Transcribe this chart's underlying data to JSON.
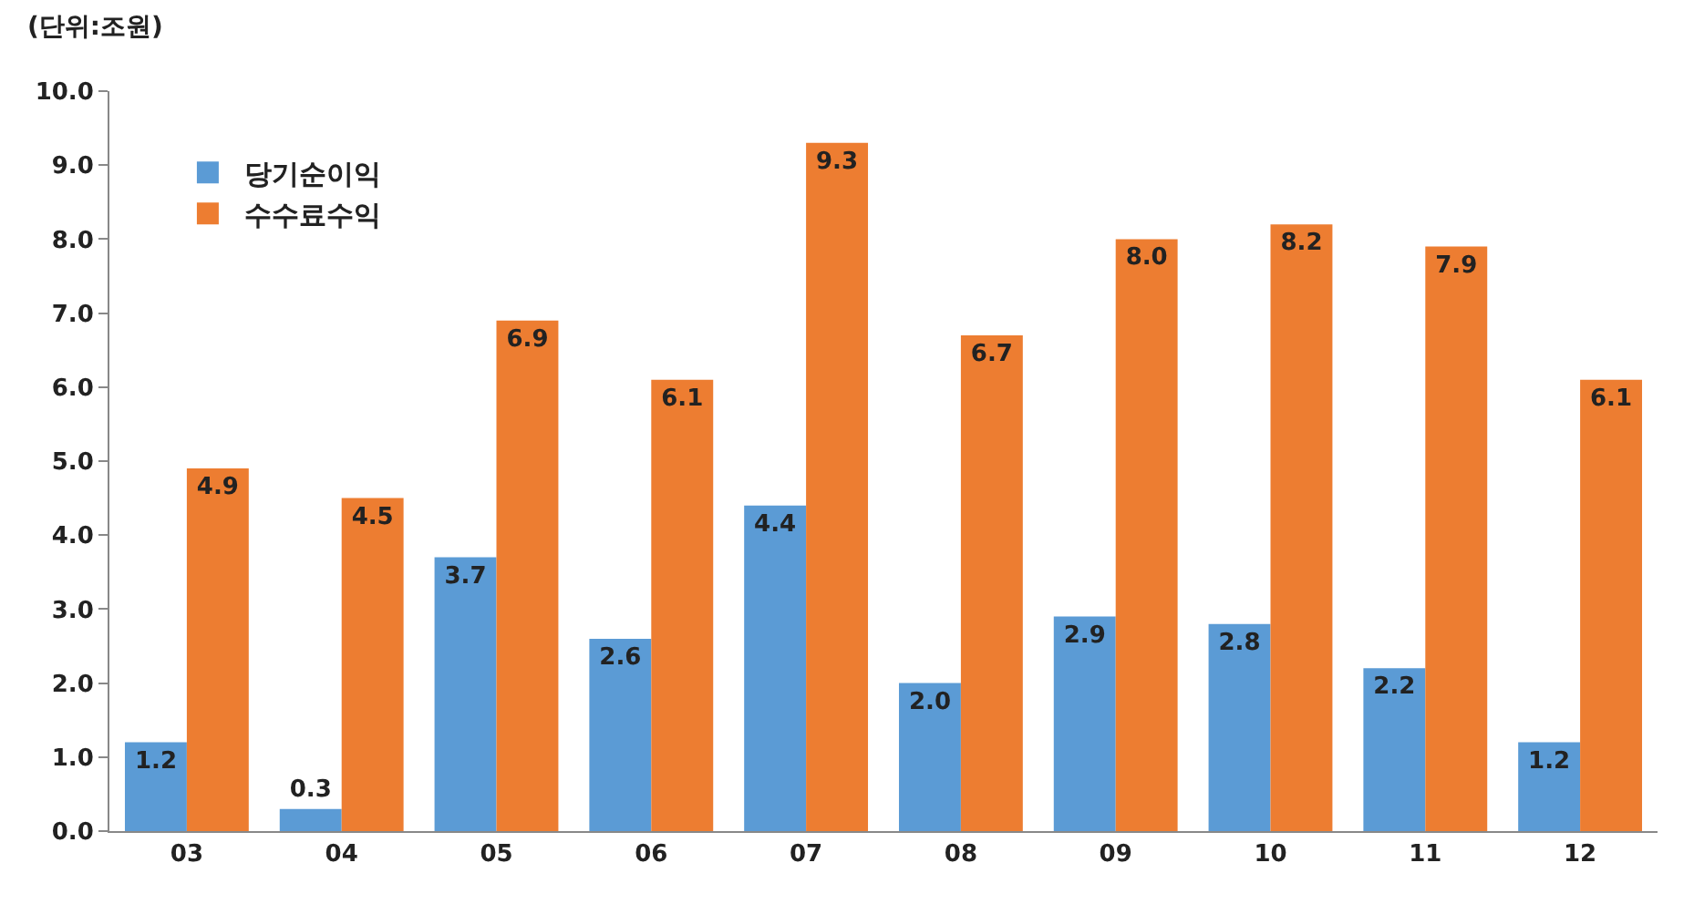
{
  "chart_data": {
    "type": "bar",
    "categories": [
      "03",
      "04",
      "05",
      "06",
      "07",
      "08",
      "09",
      "10",
      "11",
      "12"
    ],
    "series": [
      {
        "name": "당기순이익",
        "color": "#5b9bd5",
        "values": [
          1.2,
          0.3,
          3.7,
          2.6,
          4.4,
          2.0,
          2.9,
          2.8,
          2.2,
          1.2
        ],
        "value_labels": [
          "1.2",
          "0.3",
          "3.7",
          "2.6",
          "4.4",
          "2.0",
          "2.9",
          "2.8",
          "2.2",
          "1.2"
        ]
      },
      {
        "name": "수수료수익",
        "color": "#ed7d31",
        "values": [
          4.9,
          4.5,
          6.9,
          6.1,
          9.3,
          6.7,
          8.0,
          8.2,
          7.9,
          6.1
        ],
        "value_labels": [
          "4.9",
          "4.5",
          "6.9",
          "6.1",
          "9.3",
          "6.7",
          "8.0",
          "8.2",
          "7.9",
          "6.1"
        ]
      }
    ],
    "ylim": [
      0,
      10
    ],
    "yticks": [
      {
        "value": 0,
        "label": "0.0"
      },
      {
        "value": 1,
        "label": "1.0"
      },
      {
        "value": 2,
        "label": "2.0"
      },
      {
        "value": 3,
        "label": "3.0"
      },
      {
        "value": 4,
        "label": "4.0"
      },
      {
        "value": 5,
        "label": "5.0"
      },
      {
        "value": 6,
        "label": "6.0"
      },
      {
        "value": 7,
        "label": "7.0"
      },
      {
        "value": 8,
        "label": "8.0"
      },
      {
        "value": 9,
        "label": "9.0"
      },
      {
        "value": 10,
        "label": "10.0"
      }
    ],
    "annotations": [
      "(단위:조원)"
    ],
    "legend": "top left"
  }
}
